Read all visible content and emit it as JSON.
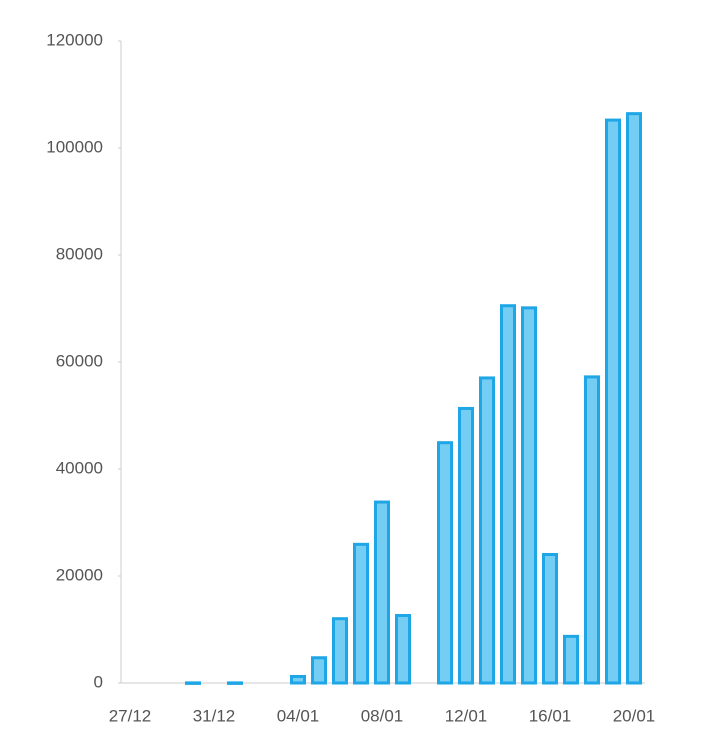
{
  "chart_data": {
    "type": "bar",
    "categories": [
      "27/12",
      null,
      null,
      null,
      "31/12",
      null,
      null,
      null,
      "04/01",
      null,
      null,
      null,
      "08/01",
      null,
      null,
      null,
      "12/01",
      null,
      null,
      null,
      "16/01",
      null,
      null,
      null,
      "20/01"
    ],
    "values": [
      0,
      0,
      0,
      300,
      0,
      300,
      0,
      0,
      1500,
      5000,
      12300,
      26200,
      34100,
      12900,
      0,
      45200,
      51600,
      57300,
      70800,
      70400,
      24300,
      9000,
      57500,
      105500,
      106700
    ],
    "color": "#1ea6e6",
    "ylim": [
      0,
      120000
    ],
    "yticks": [
      0,
      20000,
      40000,
      60000,
      80000,
      100000,
      120000
    ],
    "grid": false
  }
}
